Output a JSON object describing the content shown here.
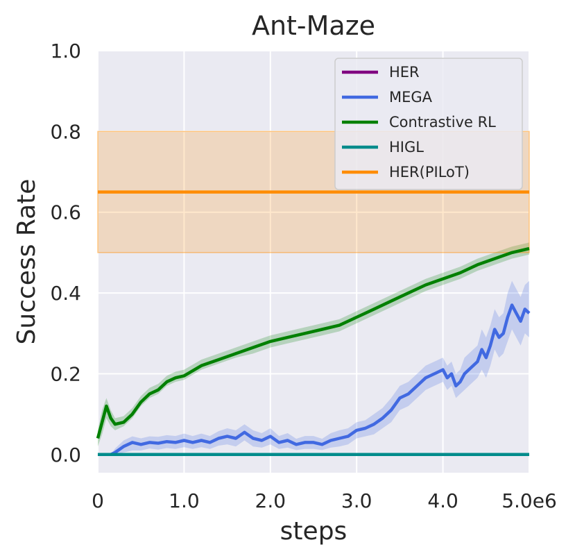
{
  "chart_data": {
    "type": "line",
    "title": "Ant-Maze",
    "xlabel": "steps",
    "ylabel": "Success Rate",
    "xlim": [
      0,
      5000000
    ],
    "ylim": [
      -0.045,
      1.0
    ],
    "x_ticks": [
      0,
      1000000,
      2000000,
      3000000,
      4000000,
      5000000
    ],
    "x_tick_labels": [
      "0",
      "1.0",
      "2.0",
      "3.0",
      "4.0",
      "5.0e6"
    ],
    "y_ticks": [
      0.0,
      0.2,
      0.4,
      0.6,
      0.8,
      1.0
    ],
    "y_tick_labels": [
      "0.0",
      "0.2",
      "0.4",
      "0.6",
      "0.8",
      "1.0"
    ],
    "grid": true,
    "legend_position": "top-right",
    "background_color": "#eaeaf2",
    "series": [
      {
        "name": "HER",
        "color": "#800080",
        "x": [
          0,
          5000000
        ],
        "values": [
          0.0,
          0.0
        ],
        "band": null
      },
      {
        "name": "MEGA",
        "color": "#4169e1",
        "x": [
          150000,
          200000,
          300000,
          400000,
          500000,
          600000,
          700000,
          800000,
          900000,
          1000000,
          1100000,
          1200000,
          1300000,
          1400000,
          1500000,
          1600000,
          1700000,
          1800000,
          1900000,
          2000000,
          2100000,
          2200000,
          2300000,
          2400000,
          2500000,
          2600000,
          2700000,
          2800000,
          2900000,
          3000000,
          3100000,
          3200000,
          3300000,
          3400000,
          3500000,
          3600000,
          3700000,
          3800000,
          3900000,
          4000000,
          4050000,
          4100000,
          4150000,
          4200000,
          4250000,
          4300000,
          4400000,
          4450000,
          4500000,
          4550000,
          4600000,
          4650000,
          4700000,
          4750000,
          4800000,
          4850000,
          4900000,
          4950000,
          5000000
        ],
        "values": [
          0.0,
          0.005,
          0.02,
          0.03,
          0.025,
          0.03,
          0.028,
          0.032,
          0.03,
          0.035,
          0.03,
          0.035,
          0.03,
          0.04,
          0.045,
          0.04,
          0.055,
          0.04,
          0.035,
          0.045,
          0.03,
          0.035,
          0.025,
          0.03,
          0.03,
          0.025,
          0.035,
          0.04,
          0.045,
          0.06,
          0.065,
          0.075,
          0.09,
          0.11,
          0.14,
          0.15,
          0.17,
          0.19,
          0.2,
          0.21,
          0.19,
          0.2,
          0.17,
          0.18,
          0.2,
          0.21,
          0.23,
          0.26,
          0.24,
          0.27,
          0.31,
          0.29,
          0.3,
          0.34,
          0.37,
          0.35,
          0.33,
          0.36,
          0.35
        ],
        "band": [
          [
            0.0,
            0.0
          ],
          [
            0.0,
            0.015
          ],
          [
            0.005,
            0.035
          ],
          [
            0.01,
            0.045
          ],
          [
            0.01,
            0.04
          ],
          [
            0.015,
            0.045
          ],
          [
            0.012,
            0.044
          ],
          [
            0.016,
            0.048
          ],
          [
            0.014,
            0.046
          ],
          [
            0.018,
            0.052
          ],
          [
            0.014,
            0.046
          ],
          [
            0.018,
            0.052
          ],
          [
            0.014,
            0.046
          ],
          [
            0.022,
            0.058
          ],
          [
            0.025,
            0.065
          ],
          [
            0.02,
            0.06
          ],
          [
            0.035,
            0.075
          ],
          [
            0.02,
            0.06
          ],
          [
            0.017,
            0.053
          ],
          [
            0.025,
            0.065
          ],
          [
            0.014,
            0.046
          ],
          [
            0.017,
            0.053
          ],
          [
            0.011,
            0.039
          ],
          [
            0.014,
            0.046
          ],
          [
            0.014,
            0.046
          ],
          [
            0.011,
            0.039
          ],
          [
            0.017,
            0.053
          ],
          [
            0.02,
            0.06
          ],
          [
            0.025,
            0.065
          ],
          [
            0.04,
            0.08
          ],
          [
            0.045,
            0.085
          ],
          [
            0.05,
            0.1
          ],
          [
            0.065,
            0.115
          ],
          [
            0.08,
            0.14
          ],
          [
            0.11,
            0.17
          ],
          [
            0.12,
            0.18
          ],
          [
            0.14,
            0.2
          ],
          [
            0.16,
            0.22
          ],
          [
            0.17,
            0.23
          ],
          [
            0.18,
            0.24
          ],
          [
            0.16,
            0.22
          ],
          [
            0.17,
            0.23
          ],
          [
            0.14,
            0.2
          ],
          [
            0.15,
            0.21
          ],
          [
            0.16,
            0.24
          ],
          [
            0.17,
            0.25
          ],
          [
            0.19,
            0.27
          ],
          [
            0.21,
            0.31
          ],
          [
            0.19,
            0.29
          ],
          [
            0.22,
            0.32
          ],
          [
            0.26,
            0.36
          ],
          [
            0.24,
            0.34
          ],
          [
            0.25,
            0.35
          ],
          [
            0.28,
            0.4
          ],
          [
            0.31,
            0.43
          ],
          [
            0.29,
            0.41
          ],
          [
            0.27,
            0.39
          ],
          [
            0.3,
            0.42
          ],
          [
            0.29,
            0.43
          ]
        ]
      },
      {
        "name": "Contrastive RL",
        "color": "#008000",
        "x": [
          0,
          50000,
          100000,
          150000,
          200000,
          300000,
          400000,
          500000,
          600000,
          700000,
          800000,
          900000,
          1000000,
          1200000,
          1400000,
          1600000,
          1800000,
          2000000,
          2200000,
          2400000,
          2600000,
          2800000,
          3000000,
          3200000,
          3400000,
          3600000,
          3800000,
          4000000,
          4200000,
          4400000,
          4600000,
          4800000,
          5000000
        ],
        "values": [
          0.04,
          0.08,
          0.12,
          0.09,
          0.075,
          0.08,
          0.1,
          0.13,
          0.15,
          0.16,
          0.18,
          0.19,
          0.195,
          0.22,
          0.235,
          0.25,
          0.265,
          0.28,
          0.29,
          0.3,
          0.31,
          0.32,
          0.34,
          0.36,
          0.38,
          0.4,
          0.42,
          0.435,
          0.45,
          0.47,
          0.485,
          0.5,
          0.51
        ],
        "band": [
          [
            0.02,
            0.06
          ],
          [
            0.05,
            0.11
          ],
          [
            0.09,
            0.14
          ],
          [
            0.07,
            0.11
          ],
          [
            0.06,
            0.09
          ],
          [
            0.07,
            0.095
          ],
          [
            0.09,
            0.115
          ],
          [
            0.12,
            0.145
          ],
          [
            0.14,
            0.165
          ],
          [
            0.15,
            0.175
          ],
          [
            0.17,
            0.195
          ],
          [
            0.18,
            0.205
          ],
          [
            0.185,
            0.21
          ],
          [
            0.21,
            0.235
          ],
          [
            0.225,
            0.25
          ],
          [
            0.24,
            0.265
          ],
          [
            0.25,
            0.28
          ],
          [
            0.265,
            0.295
          ],
          [
            0.275,
            0.305
          ],
          [
            0.285,
            0.315
          ],
          [
            0.295,
            0.325
          ],
          [
            0.305,
            0.335
          ],
          [
            0.325,
            0.355
          ],
          [
            0.345,
            0.375
          ],
          [
            0.365,
            0.395
          ],
          [
            0.385,
            0.415
          ],
          [
            0.405,
            0.435
          ],
          [
            0.42,
            0.45
          ],
          [
            0.435,
            0.465
          ],
          [
            0.455,
            0.485
          ],
          [
            0.47,
            0.5
          ],
          [
            0.485,
            0.515
          ],
          [
            0.495,
            0.525
          ]
        ]
      },
      {
        "name": "HIGL",
        "color": "#008b8b",
        "x": [
          0,
          5000000
        ],
        "values": [
          0.0,
          0.0
        ],
        "band": null
      },
      {
        "name": "HER(PILoT)",
        "color": "#ff8c00",
        "x": [
          0,
          5000000
        ],
        "values": [
          0.65,
          0.65
        ],
        "band": [
          [
            0.5,
            0.8
          ],
          [
            0.5,
            0.8
          ]
        ]
      }
    ]
  }
}
